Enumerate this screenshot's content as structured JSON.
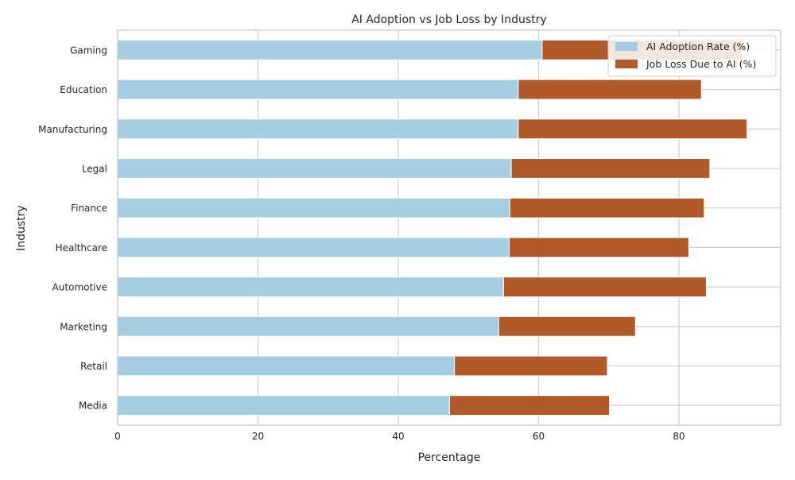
{
  "chart_data": {
    "type": "bar",
    "orientation": "horizontal",
    "stacked": true,
    "title": "AI Adoption vs Job Loss by Industry",
    "xlabel": "Percentage",
    "ylabel": "Industry",
    "xlim": [
      0,
      94.5
    ],
    "xticks": [
      0,
      20,
      40,
      60,
      80
    ],
    "grid": true,
    "legend_position": "top-right",
    "categories": [
      "Gaming",
      "Education",
      "Manufacturing",
      "Legal",
      "Finance",
      "Healthcare",
      "Automotive",
      "Marketing",
      "Retail",
      "Media"
    ],
    "series": [
      {
        "name": "AI Adoption Rate (%)",
        "color": "#a6cee3",
        "values": [
          60.5,
          57.1,
          57.1,
          56.1,
          55.9,
          55.8,
          55.0,
          54.3,
          48.0,
          47.3
        ]
      },
      {
        "name": "Job Loss Due to AI (%)",
        "color": "#b15928",
        "values": [
          28.5,
          26.1,
          32.6,
          28.3,
          27.7,
          25.6,
          28.9,
          19.5,
          21.8,
          22.8
        ]
      }
    ]
  }
}
